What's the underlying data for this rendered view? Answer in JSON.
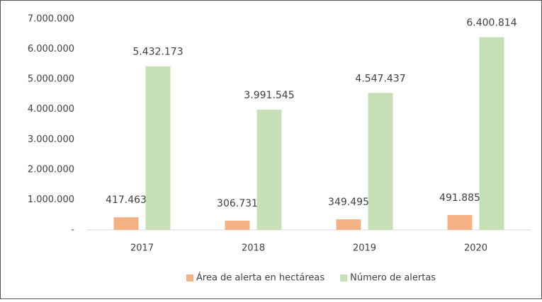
{
  "chart_data": {
    "type": "bar",
    "categories": [
      "2017",
      "2018",
      "2019",
      "2020"
    ],
    "series": [
      {
        "name": "Área de alerta en hectáreas",
        "color": "#f4b183",
        "values": [
          417463,
          306731,
          349495,
          491885
        ],
        "value_labels": [
          "417.463",
          "306.731",
          "349.495",
          "491.885"
        ]
      },
      {
        "name": "Número de alertas",
        "color": "#c5e0b4",
        "values": [
          5432173,
          3991545,
          4547437,
          6400814
        ],
        "value_labels": [
          "5.432.173",
          "3.991.545",
          "4.547.437",
          "6.400.814"
        ]
      }
    ],
    "ylim": [
      0,
      7000000
    ],
    "yticks": [
      {
        "value": 0,
        "label": "-"
      },
      {
        "value": 1000000,
        "label": "1.000.000"
      },
      {
        "value": 2000000,
        "label": "2.000.000"
      },
      {
        "value": 3000000,
        "label": "3.000.000"
      },
      {
        "value": 4000000,
        "label": "4.000.000"
      },
      {
        "value": 5000000,
        "label": "5.000.000"
      },
      {
        "value": 6000000,
        "label": "6.000.000"
      },
      {
        "value": 7000000,
        "label": "7.000.000"
      }
    ],
    "grid": false,
    "legend": "bottom"
  }
}
